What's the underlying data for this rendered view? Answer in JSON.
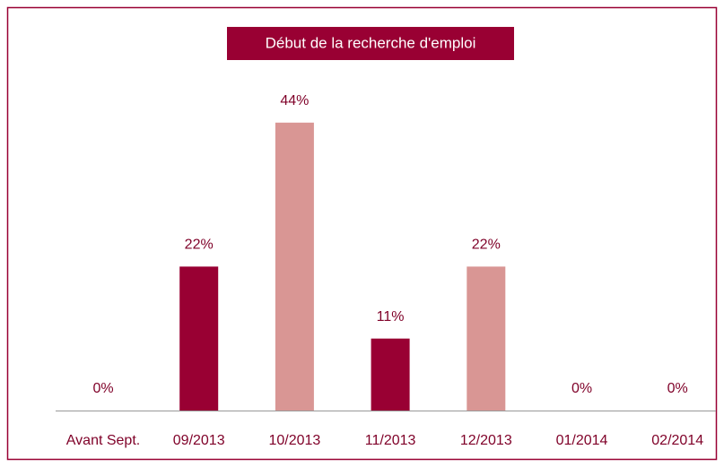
{
  "chart_data": {
    "type": "bar",
    "title": "Début de la recherche d'emploi",
    "categories": [
      "Avant Sept.",
      "09/2013",
      "10/2013",
      "11/2013",
      "12/2013",
      "01/2014",
      "02/2014"
    ],
    "values": [
      0,
      22,
      44,
      11,
      22,
      0,
      0
    ],
    "value_labels": [
      "0%",
      "22%",
      "44%",
      "11%",
      "22%",
      "0%",
      "0%"
    ],
    "colors": [
      "#990033",
      "#990033",
      "#d99694",
      "#990033",
      "#d99694",
      "#990033",
      "#d99694"
    ]
  }
}
